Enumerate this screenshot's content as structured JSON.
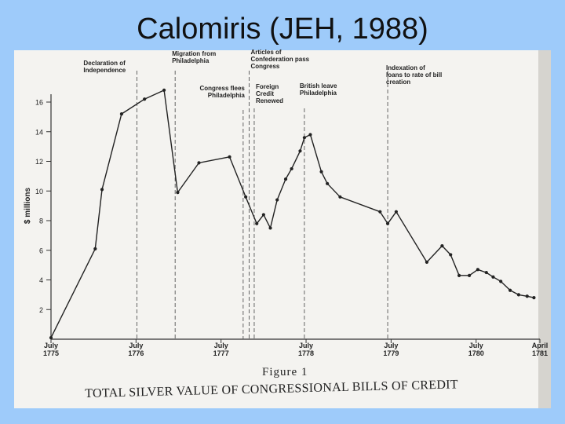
{
  "slide": {
    "title": "Calomiris (JEH, 1988)"
  },
  "chart_data": {
    "type": "line",
    "figure_label": "Figure 1",
    "title": "TOTAL SILVER VALUE OF CONGRESSIONAL BILLS OF CREDIT",
    "ylabel": "$ millions",
    "ylim": [
      0,
      17
    ],
    "yticks": [
      2,
      4,
      6,
      8,
      10,
      12,
      14,
      16
    ],
    "xlim": [
      1775.5,
      1781.25
    ],
    "xticks": [
      {
        "x": 1775.5,
        "label": "July",
        "year": "1775"
      },
      {
        "x": 1776.5,
        "label": "July",
        "year": "1776"
      },
      {
        "x": 1777.5,
        "label": "July",
        "year": "1777"
      },
      {
        "x": 1778.5,
        "label": "July",
        "year": "1778"
      },
      {
        "x": 1779.5,
        "label": "July",
        "year": "1779"
      },
      {
        "x": 1780.5,
        "label": "July",
        "year": "1780"
      },
      {
        "x": 1781.25,
        "label": "April",
        "year": "1781"
      }
    ],
    "series": [
      {
        "x": [
          1775.5,
          1776.02,
          1776.1,
          1776.33,
          1776.6,
          1776.83,
          1776.99,
          1777.24,
          1777.6,
          1777.79,
          1777.92,
          1778.0,
          1778.08,
          1778.16,
          1778.26,
          1778.33,
          1778.43,
          1778.48,
          1778.55,
          1778.68,
          1778.75,
          1778.9,
          1779.37,
          1779.46,
          1779.56,
          1779.92,
          1780.1,
          1780.2,
          1780.3,
          1780.42,
          1780.52,
          1780.62,
          1780.7,
          1780.79,
          1780.9,
          1781.0,
          1781.1,
          1781.18
        ],
        "y": [
          0.1,
          6.1,
          10.1,
          15.2,
          16.2,
          16.8,
          9.9,
          11.9,
          12.3,
          9.6,
          7.8,
          8.4,
          7.5,
          9.4,
          10.8,
          11.5,
          12.7,
          13.6,
          13.8,
          11.3,
          10.5,
          9.6,
          8.6,
          7.8,
          8.6,
          5.2,
          6.3,
          5.7,
          4.3,
          4.3,
          4.7,
          4.5,
          4.2,
          3.9,
          3.3,
          3.0,
          2.9,
          2.8
        ]
      }
    ],
    "markers": [
      {
        "x": 1776.51,
        "label": "Declaration of Independence"
      },
      {
        "x": 1776.96,
        "label": "Migration from Philadelphia"
      },
      {
        "x": 1777.76,
        "label": "Congress flees Philadelphia"
      },
      {
        "x": 1777.83,
        "label": "Articles of Confederation pass Congress"
      },
      {
        "x": 1777.89,
        "label": "Foreign Credit Renewed"
      },
      {
        "x": 1778.48,
        "label": "British leave Philadelphia"
      },
      {
        "x": 1779.46,
        "label": "Indexation of loans to rate of bill creation"
      }
    ]
  }
}
